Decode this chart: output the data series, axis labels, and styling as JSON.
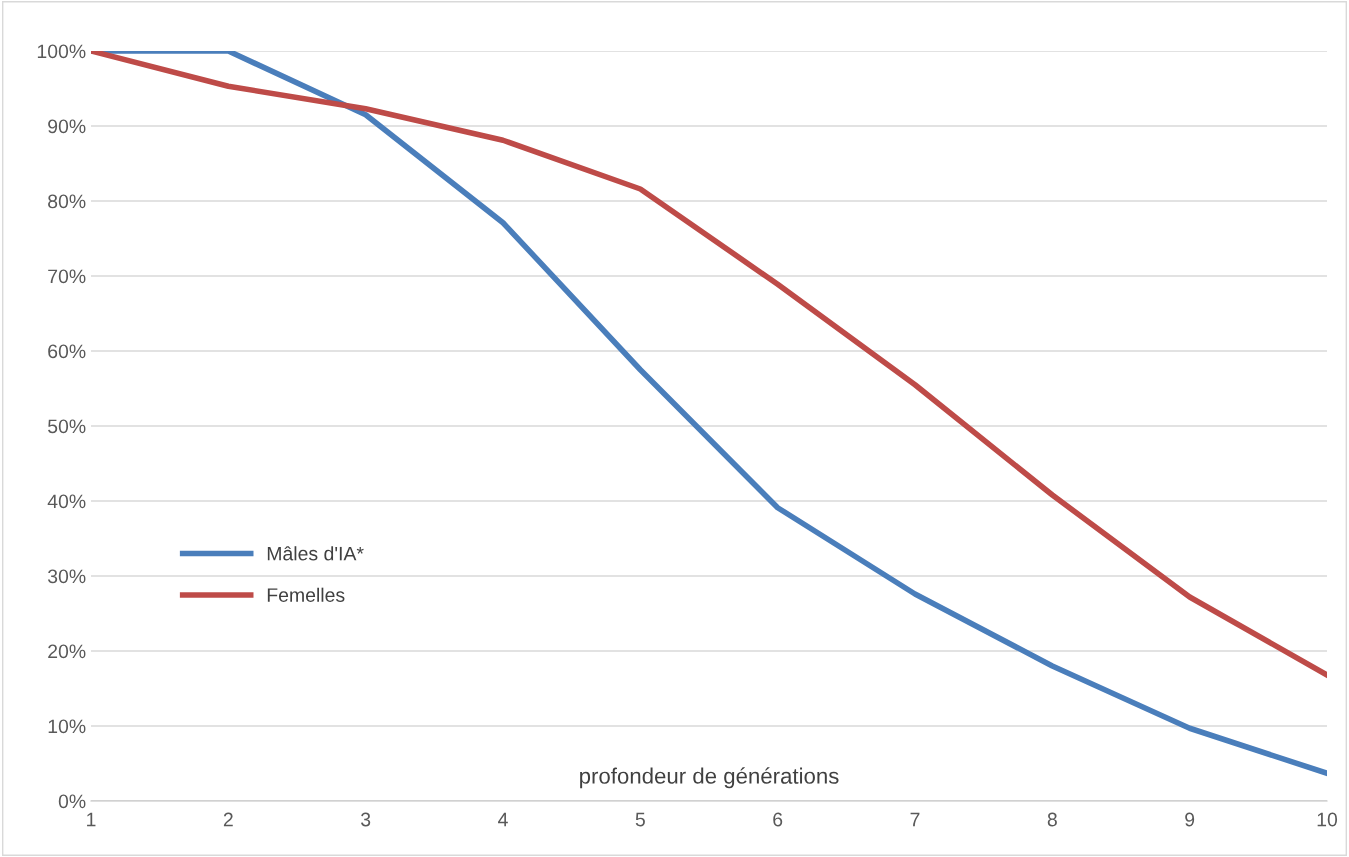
{
  "chart_data": {
    "type": "line",
    "xlabel": "profondeur de générations",
    "x": [
      1,
      2,
      3,
      4,
      5,
      6,
      7,
      8,
      9,
      10
    ],
    "series": [
      {
        "name": "Mâles d'IA*",
        "color": "#4a7ebb",
        "values": [
          100,
          100,
          91.5,
          77.1,
          57.5,
          39.1,
          27.6,
          18,
          9.7,
          3.7
        ]
      },
      {
        "name": "Femelles",
        "color": "#be4b48",
        "values": [
          100,
          95.3,
          92.3,
          88.1,
          81.6,
          68.9,
          55.5,
          40.8,
          27.2,
          16.8
        ]
      }
    ],
    "xlim": [
      1,
      10
    ],
    "xticks": [
      1,
      2,
      3,
      4,
      5,
      6,
      7,
      8,
      9,
      10
    ],
    "ylim": [
      0,
      100
    ],
    "yticks": [
      {
        "value": 0,
        "label": "0%"
      },
      {
        "value": 10,
        "label": "10%"
      },
      {
        "value": 20,
        "label": "20%"
      },
      {
        "value": 30,
        "label": "30%"
      },
      {
        "value": 40,
        "label": "40%"
      },
      {
        "value": 50,
        "label": "50%"
      },
      {
        "value": 60,
        "label": "60%"
      },
      {
        "value": 70,
        "label": "70%"
      },
      {
        "value": 80,
        "label": "80%"
      },
      {
        "value": 90,
        "label": "90%"
      },
      {
        "value": 100,
        "label": "100%"
      }
    ],
    "grid": "y",
    "legend": "left",
    "marker": "none",
    "line_style": "solid"
  }
}
